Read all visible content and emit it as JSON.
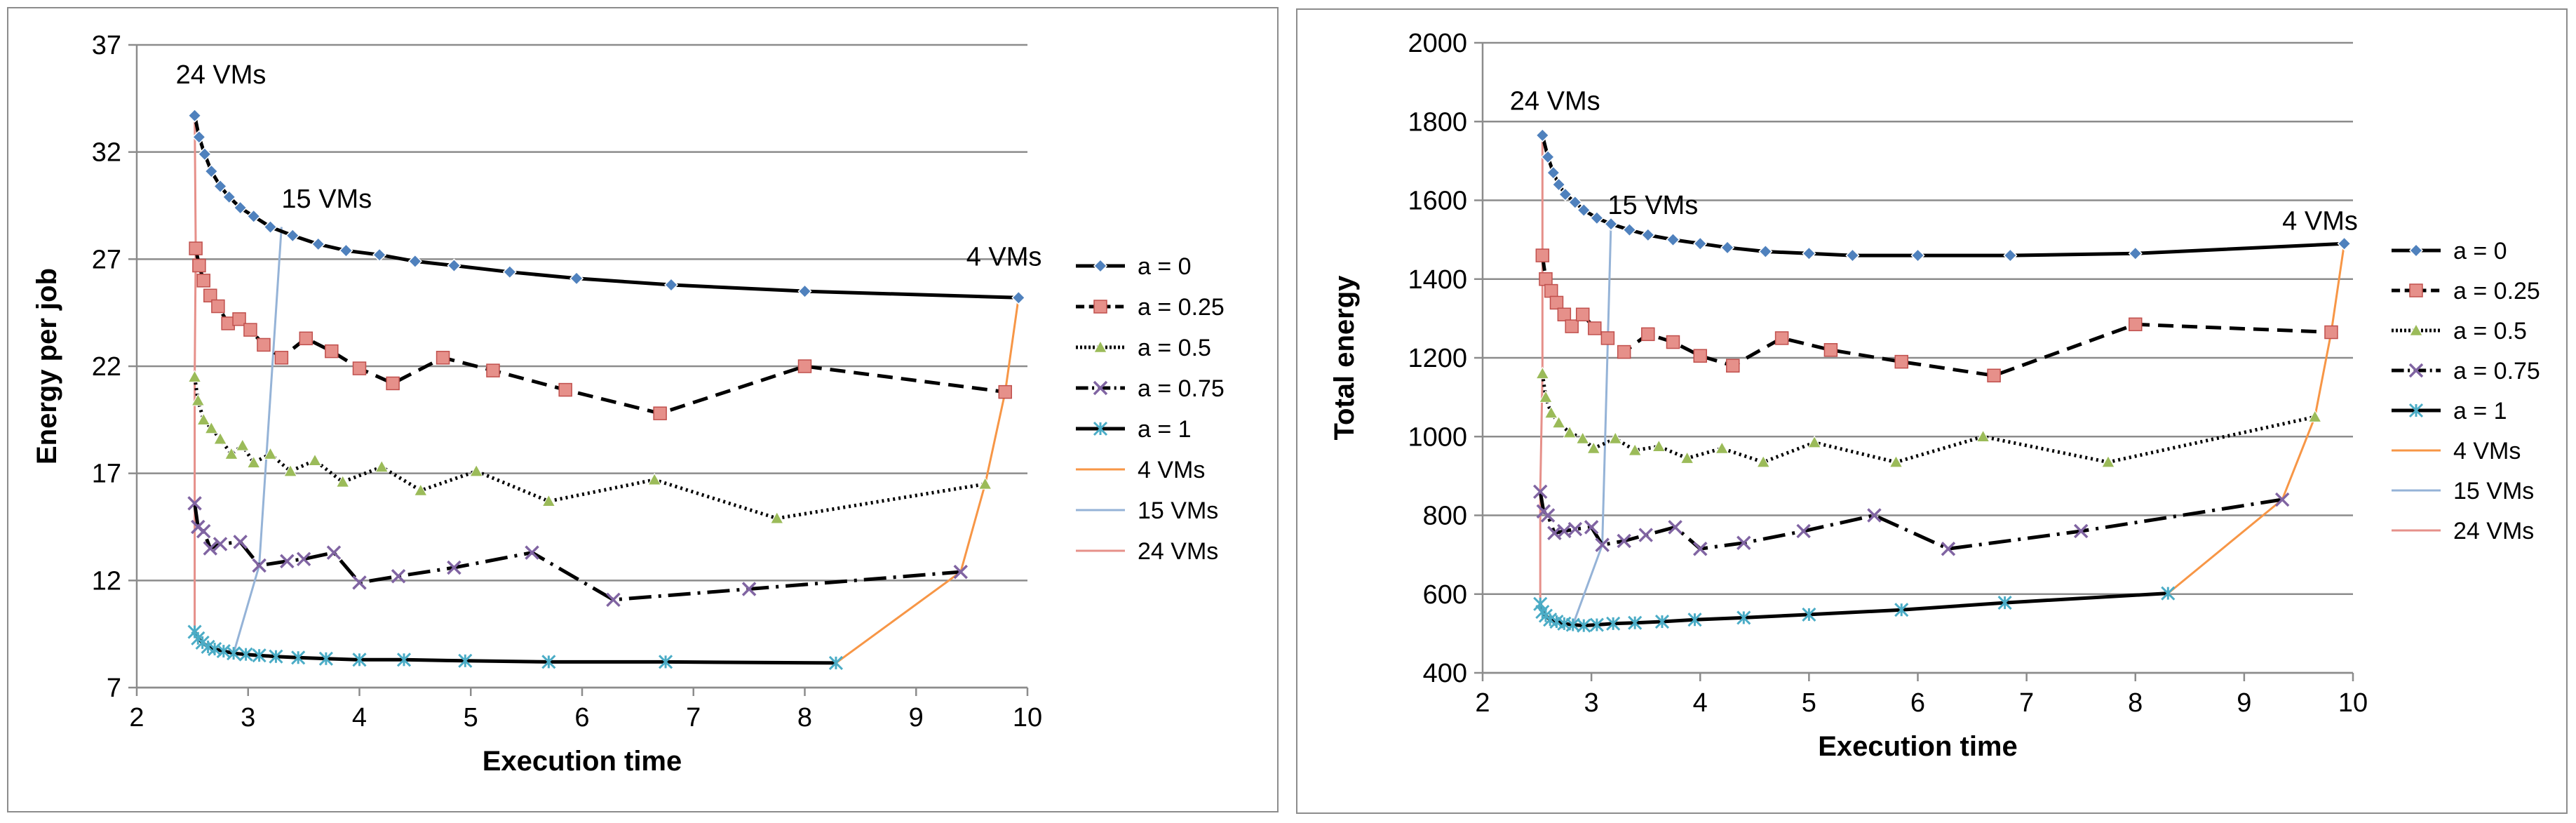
{
  "chart_data": [
    {
      "type": "line",
      "title": "",
      "xlabel": "Execution time",
      "ylabel": "Energy per job",
      "xlim": [
        2,
        10
      ],
      "ylim": [
        7,
        37
      ],
      "xticks": [
        2,
        3,
        4,
        5,
        6,
        7,
        8,
        9,
        10
      ],
      "yticks": [
        7,
        12,
        17,
        22,
        27,
        32,
        37
      ],
      "grid": "horizontal",
      "legend_position": "right",
      "annotations": [
        {
          "text": "24 VMs",
          "x": 2.35,
          "y": 35.2
        },
        {
          "text": "15 VMs",
          "x": 3.3,
          "y": 29.4
        },
        {
          "text": "4 VMs",
          "x": 9.45,
          "y": 26.7
        }
      ],
      "series": [
        {
          "name": "a = 0",
          "color": "#4f81bd",
          "marker": "diamond",
          "fill": "#4f81bd",
          "stroke": "#000000",
          "dash": "",
          "points": [
            [
              2.52,
              33.7
            ],
            [
              2.56,
              32.7
            ],
            [
              2.61,
              31.9
            ],
            [
              2.67,
              31.1
            ],
            [
              2.75,
              30.4
            ],
            [
              2.83,
              29.9
            ],
            [
              2.93,
              29.4
            ],
            [
              3.05,
              29.0
            ],
            [
              3.2,
              28.5
            ],
            [
              3.4,
              28.1
            ],
            [
              3.63,
              27.7
            ],
            [
              3.88,
              27.4
            ],
            [
              4.18,
              27.2
            ],
            [
              4.5,
              26.9
            ],
            [
              4.85,
              26.7
            ],
            [
              5.35,
              26.4
            ],
            [
              5.95,
              26.1
            ],
            [
              6.8,
              25.8
            ],
            [
              8.0,
              25.5
            ],
            [
              9.92,
              25.2
            ]
          ]
        },
        {
          "name": "a = 0.25",
          "color": "#c0504d",
          "marker": "square",
          "fill": "#e6908a",
          "stroke": "#000000",
          "dash": "22,12",
          "points": [
            [
              2.53,
              27.5
            ],
            [
              2.56,
              26.7
            ],
            [
              2.6,
              26.0
            ],
            [
              2.66,
              25.3
            ],
            [
              2.73,
              24.8
            ],
            [
              2.82,
              24.0
            ],
            [
              2.92,
              24.2
            ],
            [
              3.02,
              23.7
            ],
            [
              3.14,
              23.0
            ],
            [
              3.3,
              22.4
            ],
            [
              3.52,
              23.3
            ],
            [
              3.75,
              22.7
            ],
            [
              4.0,
              21.9
            ],
            [
              4.3,
              21.2
            ],
            [
              4.75,
              22.4
            ],
            [
              5.2,
              21.8
            ],
            [
              5.85,
              20.9
            ],
            [
              6.7,
              19.8
            ],
            [
              8.0,
              22.0
            ],
            [
              9.8,
              20.8
            ]
          ]
        },
        {
          "name": "a = 0.5",
          "color": "#9bbb59",
          "marker": "triangle",
          "fill": "#9bbb59",
          "stroke": "#000000",
          "dash": "3,5",
          "points": [
            [
              2.52,
              21.5
            ],
            [
              2.55,
              20.4
            ],
            [
              2.6,
              19.5
            ],
            [
              2.67,
              19.1
            ],
            [
              2.75,
              18.6
            ],
            [
              2.85,
              17.9
            ],
            [
              2.95,
              18.3
            ],
            [
              3.05,
              17.5
            ],
            [
              3.2,
              17.9
            ],
            [
              3.38,
              17.1
            ],
            [
              3.6,
              17.6
            ],
            [
              3.85,
              16.6
            ],
            [
              4.2,
              17.3
            ],
            [
              4.55,
              16.2
            ],
            [
              5.05,
              17.1
            ],
            [
              5.7,
              15.7
            ],
            [
              6.65,
              16.7
            ],
            [
              7.75,
              14.9
            ],
            [
              9.62,
              16.5
            ]
          ]
        },
        {
          "name": "a = 0.75",
          "color": "#8064a2",
          "marker": "x",
          "fill": "#8064a2",
          "stroke": "#8064a2",
          "dash": "32,10,4,10",
          "points": [
            [
              2.52,
              15.6
            ],
            [
              2.55,
              14.5
            ],
            [
              2.6,
              14.3
            ],
            [
              2.66,
              13.5
            ],
            [
              2.75,
              13.7
            ],
            [
              2.93,
              13.8
            ],
            [
              3.1,
              12.7
            ],
            [
              3.35,
              12.9
            ],
            [
              3.5,
              13.0
            ],
            [
              3.77,
              13.3
            ],
            [
              4.0,
              11.9
            ],
            [
              4.35,
              12.2
            ],
            [
              4.85,
              12.6
            ],
            [
              5.55,
              13.3
            ],
            [
              6.28,
              11.1
            ],
            [
              7.5,
              11.6
            ],
            [
              9.4,
              12.4
            ]
          ]
        },
        {
          "name": "a = 1",
          "color": "#4bacc6",
          "marker": "star",
          "fill": "#4bacc6",
          "stroke": "#4bacc6",
          "dash": "",
          "points": [
            [
              2.52,
              9.6
            ],
            [
              2.55,
              9.3
            ],
            [
              2.59,
              9.1
            ],
            [
              2.64,
              8.9
            ],
            [
              2.7,
              8.8
            ],
            [
              2.78,
              8.7
            ],
            [
              2.87,
              8.6
            ],
            [
              2.98,
              8.55
            ],
            [
              3.1,
              8.5
            ],
            [
              3.25,
              8.45
            ],
            [
              3.45,
              8.4
            ],
            [
              3.7,
              8.35
            ],
            [
              4.0,
              8.3
            ],
            [
              4.4,
              8.3
            ],
            [
              4.95,
              8.25
            ],
            [
              5.7,
              8.2
            ],
            [
              6.75,
              8.2
            ],
            [
              8.28,
              8.15
            ]
          ]
        },
        {
          "name": "4 VMs",
          "color": "#f79646",
          "marker": "none",
          "fill": "",
          "stroke": "#f79646",
          "dash": "",
          "thin": true,
          "points": [
            [
              8.28,
              8.15
            ],
            [
              9.4,
              12.4
            ],
            [
              9.62,
              16.5
            ],
            [
              9.8,
              20.8
            ],
            [
              9.92,
              25.2
            ]
          ]
        },
        {
          "name": "15 VMs",
          "color": "#95b3d7",
          "marker": "none",
          "fill": "",
          "stroke": "#95b3d7",
          "dash": "",
          "thin": true,
          "points": [
            [
              2.87,
              8.6
            ],
            [
              3.1,
              12.7
            ],
            [
              3.3,
              28.5
            ]
          ]
        },
        {
          "name": "24 VMs",
          "color": "#e6908a",
          "marker": "none",
          "fill": "",
          "stroke": "#e6908a",
          "dash": "",
          "thin": true,
          "points": [
            [
              2.52,
              9.6
            ],
            [
              2.52,
              15.6
            ],
            [
              2.52,
              21.5
            ],
            [
              2.53,
              27.5
            ],
            [
              2.52,
              33.7
            ]
          ]
        }
      ]
    },
    {
      "type": "line",
      "title": "",
      "xlabel": "Execution time",
      "ylabel": "Total energy",
      "xlim": [
        2,
        10
      ],
      "ylim": [
        400,
        2000
      ],
      "xticks": [
        2,
        3,
        4,
        5,
        6,
        7,
        8,
        9,
        10
      ],
      "yticks": [
        400,
        600,
        800,
        1000,
        1200,
        1400,
        1600,
        1800,
        2000
      ],
      "grid": "horizontal",
      "legend_position": "right",
      "annotations": [
        {
          "text": "24 VMs",
          "x": 2.25,
          "y": 1830
        },
        {
          "text": "15 VMs",
          "x": 3.15,
          "y": 1565
        },
        {
          "text": "4 VMs",
          "x": 9.35,
          "y": 1525
        }
      ],
      "series": [
        {
          "name": "a = 0",
          "color": "#4f81bd",
          "marker": "diamond",
          "fill": "#4f81bd",
          "stroke": "#000000",
          "dash": "",
          "points": [
            [
              2.55,
              1765
            ],
            [
              2.6,
              1710
            ],
            [
              2.65,
              1670
            ],
            [
              2.7,
              1640
            ],
            [
              2.76,
              1615
            ],
            [
              2.85,
              1595
            ],
            [
              2.93,
              1575
            ],
            [
              3.05,
              1555
            ],
            [
              3.18,
              1540
            ],
            [
              3.35,
              1525
            ],
            [
              3.52,
              1512
            ],
            [
              3.75,
              1500
            ],
            [
              4.0,
              1490
            ],
            [
              4.25,
              1480
            ],
            [
              4.6,
              1470
            ],
            [
              5.0,
              1465
            ],
            [
              5.4,
              1460
            ],
            [
              6.0,
              1460
            ],
            [
              6.85,
              1460
            ],
            [
              8.0,
              1465
            ],
            [
              9.92,
              1490
            ]
          ]
        },
        {
          "name": "a = 0.25",
          "color": "#c0504d",
          "marker": "square",
          "fill": "#e6908a",
          "stroke": "#000000",
          "dash": "22,12",
          "points": [
            [
              2.55,
              1460
            ],
            [
              2.58,
              1400
            ],
            [
              2.63,
              1370
            ],
            [
              2.68,
              1340
            ],
            [
              2.75,
              1310
            ],
            [
              2.82,
              1280
            ],
            [
              2.92,
              1310
            ],
            [
              3.03,
              1275
            ],
            [
              3.15,
              1250
            ],
            [
              3.3,
              1215
            ],
            [
              3.52,
              1260
            ],
            [
              3.75,
              1240
            ],
            [
              4.0,
              1205
            ],
            [
              4.3,
              1180
            ],
            [
              4.75,
              1250
            ],
            [
              5.2,
              1220
            ],
            [
              5.85,
              1190
            ],
            [
              6.7,
              1155
            ],
            [
              8.0,
              1285
            ],
            [
              9.8,
              1265
            ]
          ]
        },
        {
          "name": "a = 0.5",
          "color": "#9bbb59",
          "marker": "triangle",
          "fill": "#9bbb59",
          "stroke": "#000000",
          "dash": "3,5",
          "points": [
            [
              2.55,
              1160
            ],
            [
              2.58,
              1100
            ],
            [
              2.63,
              1060
            ],
            [
              2.7,
              1035
            ],
            [
              2.8,
              1010
            ],
            [
              2.92,
              995
            ],
            [
              3.02,
              970
            ],
            [
              3.22,
              995
            ],
            [
              3.4,
              965
            ],
            [
              3.62,
              975
            ],
            [
              3.88,
              945
            ],
            [
              4.2,
              970
            ],
            [
              4.58,
              935
            ],
            [
              5.05,
              985
            ],
            [
              5.8,
              935
            ],
            [
              6.6,
              1000
            ],
            [
              7.75,
              935
            ],
            [
              9.65,
              1050
            ]
          ]
        },
        {
          "name": "a = 0.75",
          "color": "#8064a2",
          "marker": "x",
          "fill": "#8064a2",
          "stroke": "#8064a2",
          "dash": "32,10,4,10",
          "points": [
            [
              2.53,
              860
            ],
            [
              2.56,
              810
            ],
            [
              2.6,
              800
            ],
            [
              2.66,
              755
            ],
            [
              2.75,
              760
            ],
            [
              2.85,
              765
            ],
            [
              3.0,
              770
            ],
            [
              3.1,
              725
            ],
            [
              3.3,
              735
            ],
            [
              3.5,
              750
            ],
            [
              3.77,
              770
            ],
            [
              4.0,
              715
            ],
            [
              4.4,
              730
            ],
            [
              4.95,
              760
            ],
            [
              5.6,
              800
            ],
            [
              6.28,
              715
            ],
            [
              7.5,
              760
            ],
            [
              9.35,
              840
            ]
          ]
        },
        {
          "name": "a = 1",
          "color": "#4bacc6",
          "marker": "star",
          "fill": "#4bacc6",
          "stroke": "#4bacc6",
          "dash": "",
          "points": [
            [
              2.53,
              575
            ],
            [
              2.55,
              555
            ],
            [
              2.58,
              545
            ],
            [
              2.62,
              535
            ],
            [
              2.68,
              530
            ],
            [
              2.75,
              525
            ],
            [
              2.83,
              522
            ],
            [
              2.93,
              520
            ],
            [
              3.05,
              522
            ],
            [
              3.2,
              525
            ],
            [
              3.4,
              527
            ],
            [
              3.65,
              530
            ],
            [
              3.95,
              535
            ],
            [
              4.4,
              540
            ],
            [
              5.0,
              548
            ],
            [
              5.85,
              560
            ],
            [
              6.8,
              578
            ],
            [
              8.3,
              602
            ]
          ]
        },
        {
          "name": "4 VMs",
          "color": "#f79646",
          "marker": "none",
          "fill": "",
          "stroke": "#f79646",
          "dash": "",
          "thin": true,
          "points": [
            [
              8.3,
              602
            ],
            [
              9.35,
              840
            ],
            [
              9.65,
              1050
            ],
            [
              9.8,
              1265
            ],
            [
              9.92,
              1490
            ]
          ]
        },
        {
          "name": "15 VMs",
          "color": "#95b3d7",
          "marker": "none",
          "fill": "",
          "stroke": "#95b3d7",
          "dash": "",
          "thin": true,
          "points": [
            [
              2.83,
              522
            ],
            [
              3.1,
              725
            ],
            [
              3.18,
              1540
            ]
          ]
        },
        {
          "name": "24 VMs",
          "color": "#e6908a",
          "marker": "none",
          "fill": "",
          "stroke": "#e6908a",
          "dash": "",
          "thin": true,
          "points": [
            [
              2.53,
              575
            ],
            [
              2.53,
              860
            ],
            [
              2.55,
              1160
            ],
            [
              2.55,
              1460
            ],
            [
              2.55,
              1765
            ]
          ]
        }
      ]
    }
  ]
}
